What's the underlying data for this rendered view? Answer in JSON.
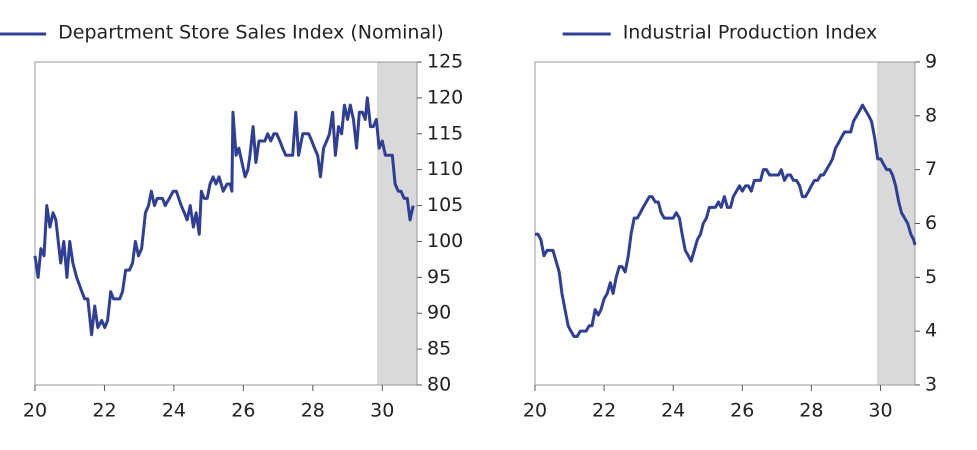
{
  "chart_data": [
    {
      "type": "line",
      "xlim": [
        20,
        31
      ],
      "xticks": [
        20,
        22,
        24,
        26,
        28,
        30
      ],
      "ylim": [
        80,
        125
      ],
      "yticks": [
        80,
        85,
        90,
        95,
        100,
        105,
        110,
        115,
        120,
        125
      ],
      "y_axis_side": "right",
      "shaded_xrange": [
        29.85,
        31
      ],
      "shade_color": "#d9d9d9",
      "x": [
        20.0,
        20.09,
        20.17,
        20.26,
        20.34,
        20.43,
        20.52,
        20.6,
        20.74,
        20.83,
        20.92,
        21.0,
        21.09,
        21.2,
        21.35,
        21.43,
        21.52,
        21.63,
        21.72,
        21.81,
        21.92,
        22.01,
        22.09,
        22.18,
        22.26,
        22.44,
        22.52,
        22.61,
        22.72,
        22.81,
        22.89,
        22.98,
        23.07,
        23.18,
        23.27,
        23.35,
        23.44,
        23.52,
        23.67,
        23.75,
        23.87,
        23.98,
        24.07,
        24.21,
        24.3,
        24.38,
        24.47,
        24.56,
        24.64,
        24.73,
        24.79,
        24.87,
        24.96,
        25.04,
        25.13,
        25.21,
        25.3,
        25.36,
        25.42,
        25.53,
        25.62,
        25.67,
        25.7,
        25.79,
        25.87,
        25.96,
        26.05,
        26.13,
        26.19,
        26.28,
        26.36,
        26.45,
        26.53,
        26.62,
        26.7,
        26.79,
        26.88,
        26.96,
        27.05,
        27.13,
        27.22,
        27.34,
        27.42,
        27.51,
        27.59,
        27.71,
        27.79,
        27.88,
        27.97,
        28.05,
        28.14,
        28.22,
        28.31,
        28.4,
        28.48,
        28.57,
        28.65,
        28.74,
        28.83,
        28.91,
        29.0,
        29.08,
        29.17,
        29.26,
        29.34,
        29.43,
        29.51,
        29.57,
        29.66,
        29.74,
        29.83,
        29.91,
        30.0,
        30.09,
        30.2,
        30.29,
        30.37,
        30.46,
        30.54,
        30.63,
        30.72,
        30.8,
        30.89
      ],
      "series": [
        {
          "name": "Department Store Sales Index (Nominal)",
          "color": "#2f3f96",
          "values": [
            98,
            95,
            99,
            98,
            105,
            102,
            104,
            103,
            97,
            100,
            95,
            100,
            97,
            95,
            93,
            92,
            92,
            87,
            91,
            88,
            89,
            88,
            89,
            93,
            92,
            92,
            93,
            96,
            96,
            97,
            100,
            98,
            99,
            104,
            105,
            107,
            105,
            106,
            106,
            105,
            106,
            107,
            107,
            105,
            104,
            103,
            105,
            102,
            104,
            101,
            107,
            106,
            106,
            108,
            109,
            108,
            109,
            108,
            107,
            108,
            108,
            107,
            118,
            112,
            113,
            111,
            109,
            110,
            112,
            116,
            111,
            114,
            114,
            114,
            115,
            114,
            115,
            115,
            114,
            113,
            112,
            112,
            112,
            118,
            112,
            115,
            115,
            115,
            114,
            113,
            112,
            109,
            113,
            114,
            115,
            118,
            112,
            116,
            115,
            119,
            117,
            119,
            117,
            113,
            118,
            118,
            117,
            120,
            116,
            116,
            117,
            113,
            114,
            112,
            112,
            112,
            108,
            107,
            107,
            106,
            106,
            103,
            105
          ]
        }
      ]
    },
    {
      "type": "line",
      "xlim": [
        20,
        31
      ],
      "xticks": [
        20,
        22,
        24,
        26,
        28,
        30
      ],
      "ylim": [
        3,
        9
      ],
      "yticks": [
        3,
        4,
        5,
        6,
        7,
        8,
        9
      ],
      "y_axis_side": "right",
      "shaded_xrange": [
        29.9,
        31
      ],
      "shade_color": "#d9d9d9",
      "x": [
        20.0,
        20.09,
        20.17,
        20.26,
        20.35,
        20.44,
        20.52,
        20.61,
        20.7,
        20.78,
        20.87,
        20.96,
        21.04,
        21.13,
        21.22,
        21.31,
        21.39,
        21.48,
        21.57,
        21.65,
        21.74,
        21.83,
        21.91,
        22.0,
        22.09,
        22.18,
        22.26,
        22.35,
        22.44,
        22.52,
        22.61,
        22.7,
        22.78,
        22.87,
        22.96,
        23.05,
        23.13,
        23.22,
        23.31,
        23.39,
        23.48,
        23.57,
        23.65,
        23.74,
        23.83,
        23.92,
        24.0,
        24.09,
        24.18,
        24.26,
        24.35,
        24.44,
        24.52,
        24.61,
        24.7,
        24.79,
        24.87,
        24.96,
        25.05,
        25.13,
        25.22,
        25.31,
        25.39,
        25.48,
        25.57,
        25.66,
        25.74,
        25.83,
        25.92,
        26.0,
        26.09,
        26.18,
        26.26,
        26.35,
        26.44,
        26.53,
        26.61,
        26.7,
        26.79,
        26.87,
        26.96,
        27.05,
        27.13,
        27.22,
        27.31,
        27.4,
        27.48,
        27.57,
        27.66,
        27.74,
        27.83,
        27.92,
        28.0,
        28.09,
        28.18,
        28.27,
        28.35,
        28.44,
        28.53,
        28.61,
        28.7,
        28.79,
        28.87,
        28.96,
        29.05,
        29.14,
        29.22,
        29.31,
        29.4,
        29.48,
        29.57,
        29.66,
        29.74,
        29.83,
        29.92,
        30.01,
        30.09,
        30.18,
        30.27,
        30.35,
        30.44,
        30.53,
        30.61,
        30.7,
        30.79,
        30.88,
        30.96,
        31.0
      ],
      "series": [
        {
          "name": "Industrial Production Index",
          "color": "#2f3f96",
          "values": [
            5.8,
            5.8,
            5.7,
            5.4,
            5.5,
            5.5,
            5.5,
            5.3,
            5.1,
            4.7,
            4.4,
            4.1,
            4.0,
            3.9,
            3.9,
            4.0,
            4.0,
            4.0,
            4.1,
            4.1,
            4.4,
            4.3,
            4.4,
            4.6,
            4.7,
            4.9,
            4.7,
            5.0,
            5.2,
            5.2,
            5.1,
            5.4,
            5.8,
            6.1,
            6.1,
            6.2,
            6.3,
            6.4,
            6.5,
            6.5,
            6.4,
            6.4,
            6.2,
            6.1,
            6.1,
            6.1,
            6.1,
            6.2,
            6.1,
            5.8,
            5.5,
            5.4,
            5.3,
            5.5,
            5.7,
            5.8,
            6.0,
            6.1,
            6.3,
            6.3,
            6.3,
            6.4,
            6.3,
            6.5,
            6.3,
            6.3,
            6.5,
            6.6,
            6.7,
            6.6,
            6.7,
            6.7,
            6.6,
            6.8,
            6.8,
            6.8,
            7.0,
            7.0,
            6.9,
            6.9,
            6.9,
            6.9,
            7.0,
            6.8,
            6.9,
            6.9,
            6.8,
            6.8,
            6.7,
            6.5,
            6.5,
            6.6,
            6.7,
            6.8,
            6.8,
            6.9,
            6.9,
            7.0,
            7.1,
            7.2,
            7.4,
            7.5,
            7.6,
            7.7,
            7.7,
            7.7,
            7.9,
            8.0,
            8.1,
            8.2,
            8.1,
            8.0,
            7.9,
            7.6,
            7.2,
            7.2,
            7.1,
            7.0,
            7.0,
            6.9,
            6.7,
            6.4,
            6.2,
            6.1,
            6.0,
            5.8,
            5.7,
            5.6
          ]
        }
      ]
    }
  ]
}
